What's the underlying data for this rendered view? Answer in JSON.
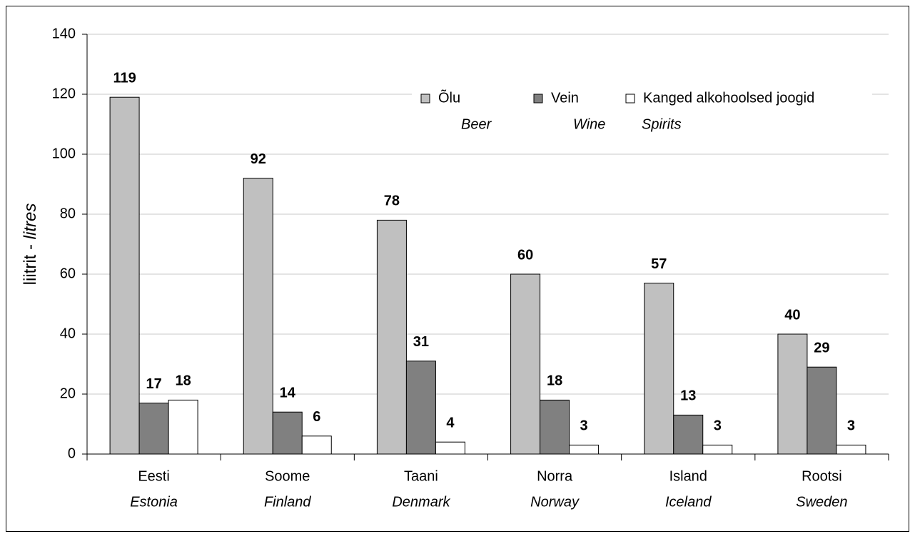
{
  "chart_data": {
    "type": "bar",
    "ylabel": "liitrit -",
    "ylabel_en": "litres",
    "categories": [
      "Eesti",
      "Soome",
      "Taani",
      "Norra",
      "Island",
      "Rootsi"
    ],
    "categories_en": [
      "Estonia",
      "Finland",
      "Denmark",
      "Norway",
      "Iceland",
      "Sweden"
    ],
    "series": [
      {
        "name": "Õlu",
        "name_en": "Beer",
        "color": "#c0c0c0",
        "values": [
          119,
          92,
          78,
          60,
          57,
          40
        ]
      },
      {
        "name": "Vein",
        "name_en": "Wine",
        "color": "#808080",
        "values": [
          17,
          14,
          31,
          18,
          13,
          29
        ]
      },
      {
        "name": "Kanged alkohoolsed joogid",
        "name_en": "Spirits",
        "color": "#ffffff",
        "values": [
          18,
          6,
          4,
          3,
          3,
          3
        ]
      }
    ],
    "ylim": [
      0,
      140
    ],
    "yticks": [
      0,
      20,
      40,
      60,
      80,
      100,
      120,
      140
    ],
    "grid": true,
    "legend": "top-right"
  }
}
